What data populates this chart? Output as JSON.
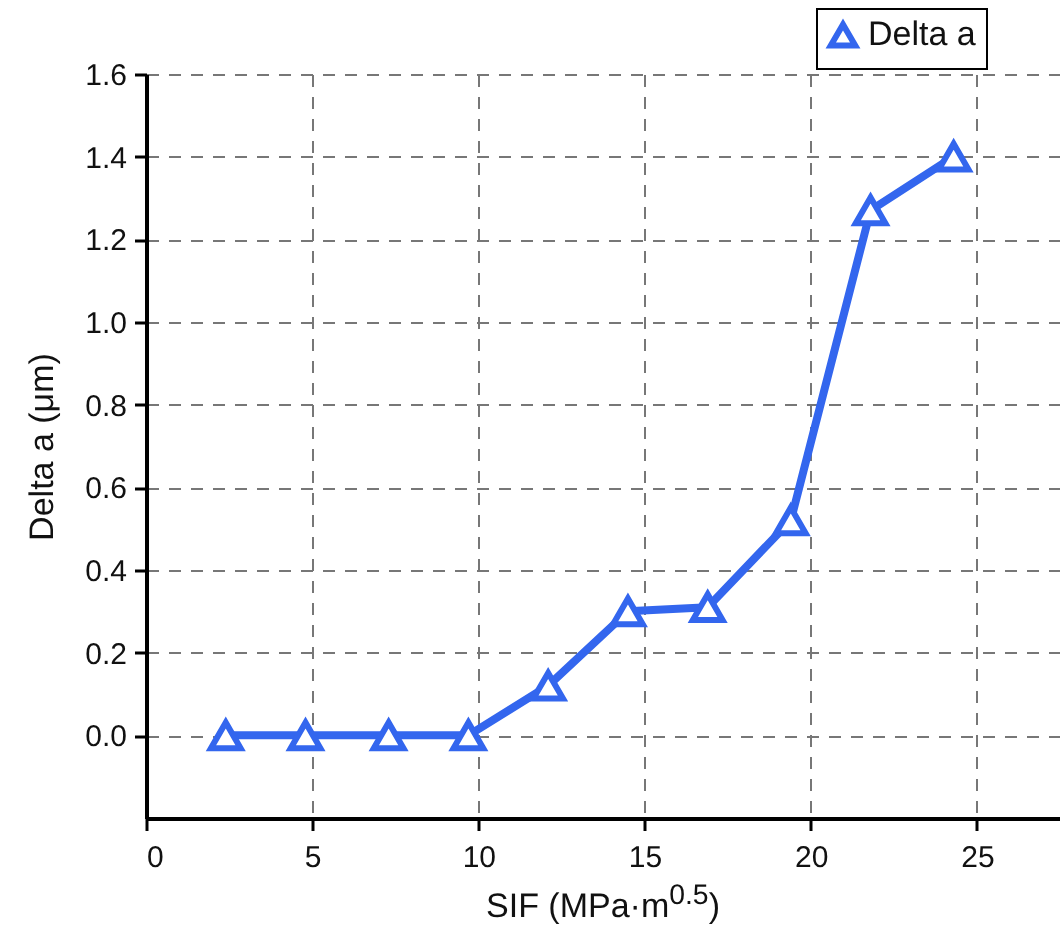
{
  "chart_data": {
    "type": "line",
    "xlabel": "SIF (MPa·m$^{0.5}$)",
    "ylabel": "Delta a (μm)",
    "x": [
      2.4,
      4.8,
      7.3,
      9.7,
      12.1,
      14.5,
      16.9,
      19.4,
      21.8,
      24.3
    ],
    "series": [
      {
        "name": "Delta a",
        "color": "#3366ee",
        "values": [
          0,
          0,
          0,
          0,
          0.12,
          0.3,
          0.31,
          0.52,
          1.27,
          1.4
        ]
      }
    ],
    "xlim": [
      0,
      27.5
    ],
    "xticks": [
      0,
      5,
      10,
      15,
      20,
      25
    ],
    "ylim": [
      -0.2,
      1.6
    ],
    "yticks": [
      {
        "value": 0,
        "label": "0.0"
      },
      0.2,
      0.4,
      0.6,
      0.8,
      {
        "value": 1,
        "label": "1.0"
      },
      1.2,
      1.4,
      1.6
    ],
    "grid": true,
    "legend": "top right",
    "marker": "triangle",
    "line_style": "solid"
  }
}
